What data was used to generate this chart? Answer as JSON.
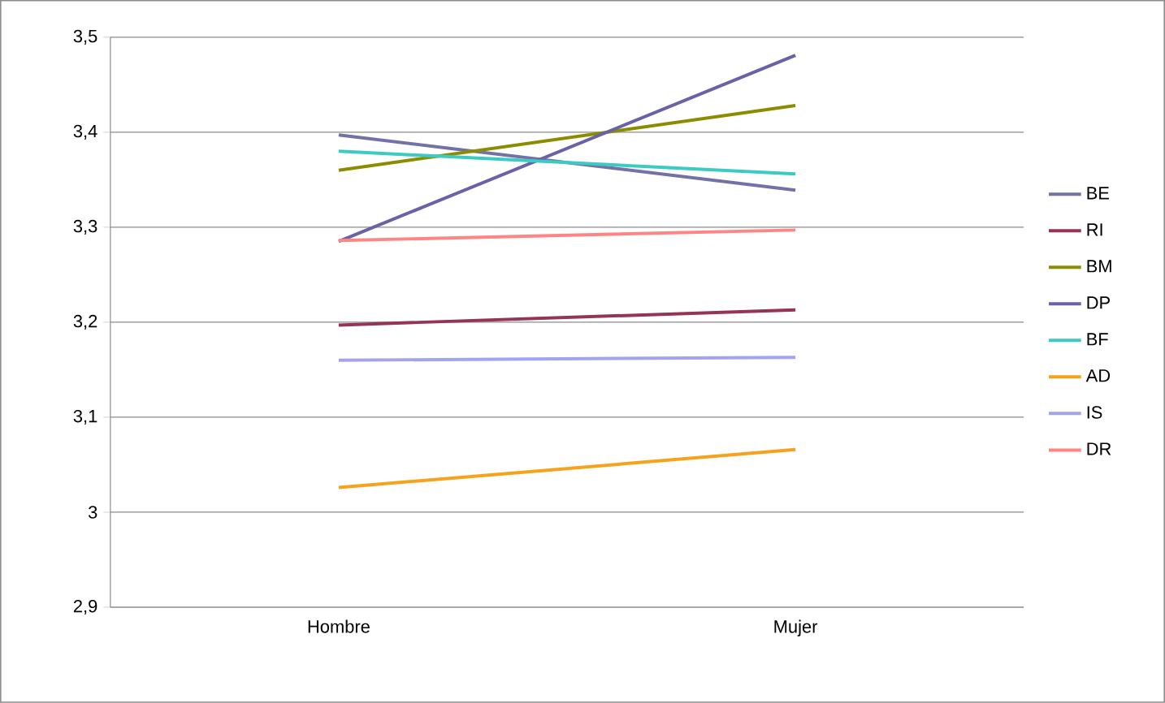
{
  "chart_data": {
    "type": "line",
    "categories": [
      "Hombre",
      "Mujer"
    ],
    "series": [
      {
        "name": "BE",
        "color": "#7272a8",
        "values": [
          3.397,
          3.339
        ]
      },
      {
        "name": "RI",
        "color": "#953553",
        "values": [
          3.197,
          3.213
        ]
      },
      {
        "name": "BM",
        "color": "#8c8c00",
        "values": [
          3.36,
          3.428
        ]
      },
      {
        "name": "DP",
        "color": "#6a62a6",
        "values": [
          3.285,
          3.481
        ]
      },
      {
        "name": "BF",
        "color": "#3ccbc3",
        "values": [
          3.38,
          3.356
        ]
      },
      {
        "name": "AD",
        "color": "#f7a21b",
        "values": [
          3.026,
          3.066
        ]
      },
      {
        "name": "IS",
        "color": "#a3a3f2",
        "values": [
          3.16,
          3.163
        ]
      },
      {
        "name": "DR",
        "color": "#ff8585",
        "values": [
          3.286,
          3.297
        ]
      }
    ],
    "ylim": [
      2.9,
      3.5
    ],
    "yticks": [
      {
        "value": 2.9,
        "label": "2,9"
      },
      3,
      {
        "value": 3.1,
        "label": "3,1"
      },
      {
        "value": 3.2,
        "label": "3,2"
      },
      {
        "value": 3.3,
        "label": "3,3"
      },
      {
        "value": 3.4,
        "label": "3,4"
      },
      {
        "value": 3.5,
        "label": "3,5"
      }
    ],
    "grid": "y",
    "legend": "right",
    "marker": "none",
    "line_style": "solid"
  }
}
